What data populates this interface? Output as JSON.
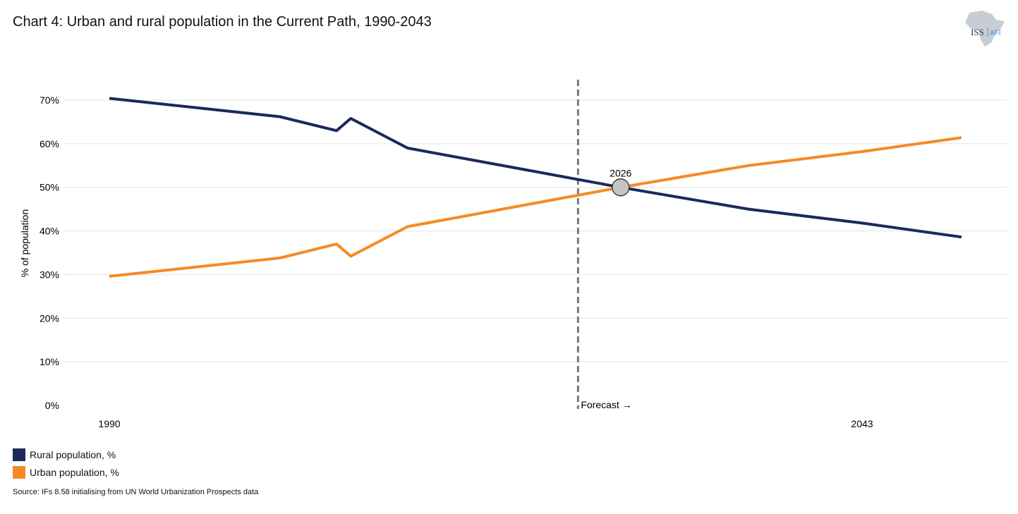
{
  "chart_data": {
    "type": "line",
    "title": "Chart 4: Urban and rural population in the Current Path, 1990-2043",
    "ylabel": "% of population",
    "xlabel": "",
    "ylim": [
      0,
      70
    ],
    "xlim": [
      1990,
      2050
    ],
    "yticks": [
      "0%",
      "10%",
      "20%",
      "30%",
      "40%",
      "50%",
      "60%",
      "70%"
    ],
    "ytick_values": [
      0,
      10,
      20,
      30,
      40,
      50,
      60,
      70
    ],
    "xticks": [
      "1990",
      "2043"
    ],
    "xtick_values": [
      1990,
      2043
    ],
    "grid": true,
    "legend_placement": "bottom-left",
    "x": [
      1990,
      2002,
      2006,
      2007,
      2011,
      2020,
      2026,
      2035,
      2043,
      2050
    ],
    "series": [
      {
        "name": "Rural population, %",
        "color": "#1b2a5c",
        "values": [
          70.4,
          66.2,
          63.0,
          65.8,
          59.0,
          53.6,
          50.0,
          45.0,
          41.8,
          38.6
        ]
      },
      {
        "name": "Urban population, %",
        "color": "#f58a24",
        "values": [
          29.6,
          33.8,
          37.0,
          34.2,
          41.0,
          46.4,
          50.0,
          55.0,
          58.2,
          61.4
        ]
      }
    ],
    "forecast_line": {
      "year": 2023,
      "label": "Forecast →"
    },
    "annotation": {
      "year": 2026,
      "value": 50,
      "label": "2026"
    }
  },
  "source": "Source: IFs 8.58 initialising from UN World Urbanization Prospects data",
  "logo": {
    "text": "ISS",
    "subtext": "AFI"
  }
}
